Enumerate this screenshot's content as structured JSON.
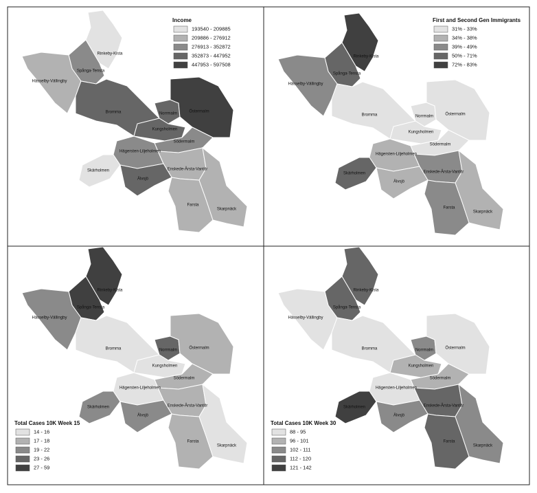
{
  "maps": [
    {
      "legend_title": "Income",
      "legend_corner": "upper right",
      "legend": [
        {
          "label": "193540 - 209885",
          "color": "#e2e2e2"
        },
        {
          "label": "209886 - 276912",
          "color": "#b2b2b2"
        },
        {
          "label": "276913 - 352872",
          "color": "#8a8a8a"
        },
        {
          "label": "352873 - 447952",
          "color": "#666666"
        },
        {
          "label": "447953 - 597508",
          "color": "#404040"
        }
      ],
      "districts": [
        {
          "label": "Rinkeby-Kista",
          "color": "#e2e2e2"
        },
        {
          "label": "Spånga-Tensta",
          "color": "#8a8a8a"
        },
        {
          "label": "Hässelby-Vällingby",
          "color": "#b2b2b2"
        },
        {
          "label": "Bromma",
          "color": "#666666"
        },
        {
          "label": "Norrmalm",
          "color": "#666666"
        },
        {
          "label": "Östermalm",
          "color": "#404040"
        },
        {
          "label": "Kungsholmen",
          "color": "#666666"
        },
        {
          "label": "Södermalm",
          "color": "#8a8a8a"
        },
        {
          "label": "Hägersten-Liljeholmen",
          "color": "#8a8a8a"
        },
        {
          "label": "Enskede-Årsta-Vantör",
          "color": "#b2b2b2"
        },
        {
          "label": "Skärholmen",
          "color": "#e2e2e2"
        },
        {
          "label": "Älvsjö",
          "color": "#666666"
        },
        {
          "label": "Farsta",
          "color": "#b2b2b2"
        },
        {
          "label": "Skarpnäck",
          "color": "#b2b2b2"
        }
      ]
    },
    {
      "legend_title": "First and Second Gen Immigrants",
      "legend_corner": "upper right",
      "legend": [
        {
          "label": "31% - 33%",
          "color": "#e2e2e2"
        },
        {
          "label": "34% - 38%",
          "color": "#b2b2b2"
        },
        {
          "label": "39% - 49%",
          "color": "#8a8a8a"
        },
        {
          "label": "50% - 71%",
          "color": "#666666"
        },
        {
          "label": "72% - 83%",
          "color": "#404040"
        }
      ],
      "districts": [
        {
          "label": "Rinkeby-Kista",
          "color": "#404040"
        },
        {
          "label": "Spånga-Tensta",
          "color": "#666666"
        },
        {
          "label": "Hässelby-Vällingby",
          "color": "#8a8a8a"
        },
        {
          "label": "Bromma",
          "color": "#e2e2e2"
        },
        {
          "label": "Norrmalm",
          "color": "#e2e2e2"
        },
        {
          "label": "Östermalm",
          "color": "#e2e2e2"
        },
        {
          "label": "Kungsholmen",
          "color": "#e2e2e2"
        },
        {
          "label": "Södermalm",
          "color": "#e2e2e2"
        },
        {
          "label": "Hägersten-Liljeholmen",
          "color": "#b2b2b2"
        },
        {
          "label": "Enskede-Årsta-Vantör",
          "color": "#8a8a8a"
        },
        {
          "label": "Skärholmen",
          "color": "#666666"
        },
        {
          "label": "Älvsjö",
          "color": "#b2b2b2"
        },
        {
          "label": "Farsta",
          "color": "#8a8a8a"
        },
        {
          "label": "Skarpnäck",
          "color": "#b2b2b2"
        }
      ]
    },
    {
      "legend_title": "Total Cases 10K Week 15",
      "legend_corner": "lower left",
      "legend": [
        {
          "label": "14 - 16",
          "color": "#e2e2e2"
        },
        {
          "label": "17 - 18",
          "color": "#b2b2b2"
        },
        {
          "label": "19 - 22",
          "color": "#8a8a8a"
        },
        {
          "label": "23 - 26",
          "color": "#666666"
        },
        {
          "label": "27 - 59",
          "color": "#404040"
        }
      ],
      "districts": [
        {
          "label": "Rinkeby-Kista",
          "color": "#404040"
        },
        {
          "label": "Spånga-Tensta",
          "color": "#404040"
        },
        {
          "label": "Hässelby-Vällingby",
          "color": "#8a8a8a"
        },
        {
          "label": "Bromma",
          "color": "#e2e2e2"
        },
        {
          "label": "Norrmalm",
          "color": "#666666"
        },
        {
          "label": "Östermalm",
          "color": "#b2b2b2"
        },
        {
          "label": "Kungsholmen",
          "color": "#e2e2e2"
        },
        {
          "label": "Södermalm",
          "color": "#b2b2b2"
        },
        {
          "label": "Hägersten-Liljeholmen",
          "color": "#e2e2e2"
        },
        {
          "label": "Enskede-Årsta-Vantör",
          "color": "#b2b2b2"
        },
        {
          "label": "Skärholmen",
          "color": "#8a8a8a"
        },
        {
          "label": "Älvsjö",
          "color": "#8a8a8a"
        },
        {
          "label": "Farsta",
          "color": "#b2b2b2"
        },
        {
          "label": "Skarpnäck",
          "color": "#e2e2e2"
        }
      ]
    },
    {
      "legend_title": "Total Cases 10K Week 30",
      "legend_corner": "lower left",
      "legend": [
        {
          "label": "88 - 95",
          "color": "#e2e2e2"
        },
        {
          "label": "96 - 101",
          "color": "#b2b2b2"
        },
        {
          "label": "102 - 111",
          "color": "#8a8a8a"
        },
        {
          "label": "112 - 120",
          "color": "#666666"
        },
        {
          "label": "121 - 142",
          "color": "#404040"
        }
      ],
      "districts": [
        {
          "label": "Rinkeby-Kista",
          "color": "#666666"
        },
        {
          "label": "Spånga-Tensta",
          "color": "#666666"
        },
        {
          "label": "Hässelby-Vällingby",
          "color": "#e2e2e2"
        },
        {
          "label": "Bromma",
          "color": "#e2e2e2"
        },
        {
          "label": "Norrmalm",
          "color": "#8a8a8a"
        },
        {
          "label": "Östermalm",
          "color": "#e2e2e2"
        },
        {
          "label": "Kungsholmen",
          "color": "#b2b2b2"
        },
        {
          "label": "Södermalm",
          "color": "#b2b2b2"
        },
        {
          "label": "Hägersten-Liljeholmen",
          "color": "#e2e2e2"
        },
        {
          "label": "Enskede-Årsta-Vantör",
          "color": "#666666"
        },
        {
          "label": "Skärholmen",
          "color": "#404040"
        },
        {
          "label": "Älvsjö",
          "color": "#8a8a8a"
        },
        {
          "label": "Farsta",
          "color": "#666666"
        },
        {
          "label": "Skarpnäck",
          "color": "#8a8a8a"
        }
      ]
    }
  ]
}
